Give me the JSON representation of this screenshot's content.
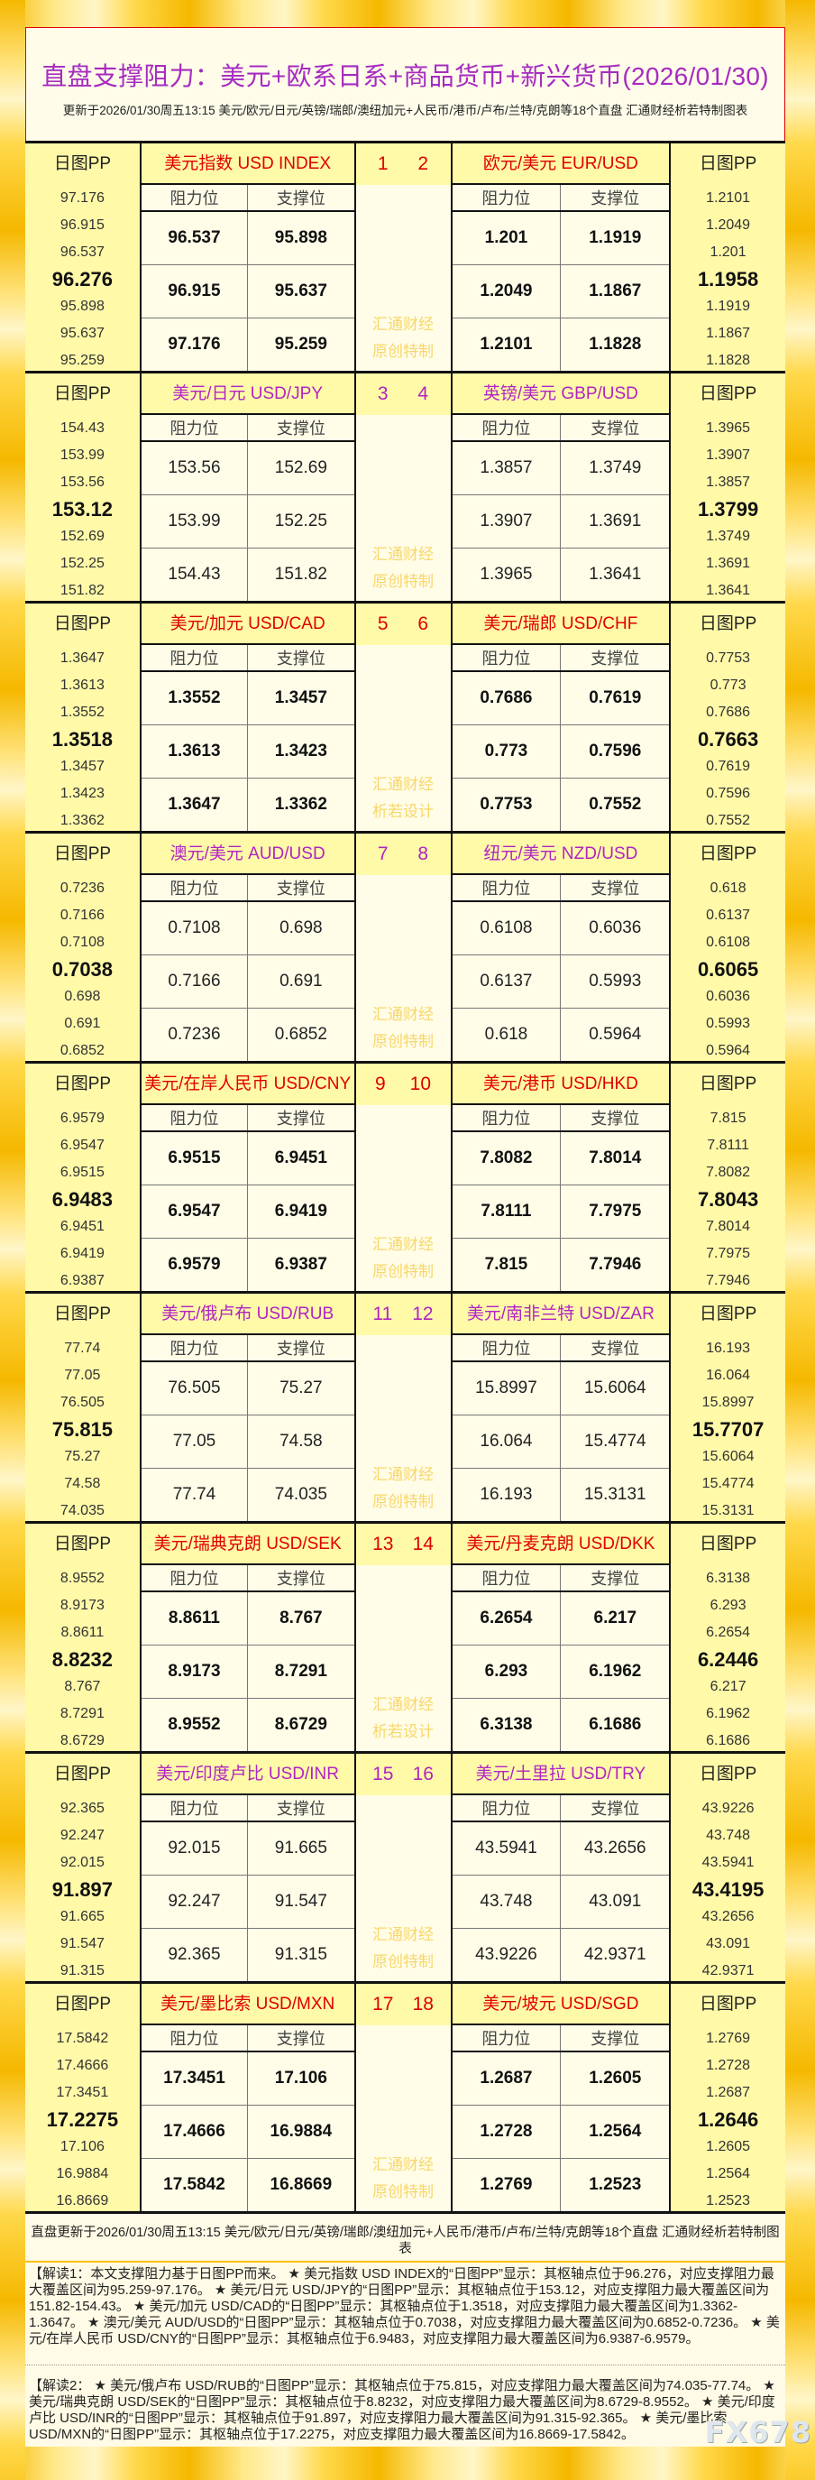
{
  "header": {
    "title": "直盘支撑阻力：美元+欧系日系+商品货币+新兴货币(2026/01/30)",
    "update": "更新于2026/01/30周五13:15 美元/欧元/日元/英镑/瑞郎/澳纽加元+人民币/港币/卢布/兰特/克朗等18个直盘 汇通财经析若特制图表"
  },
  "labels": {
    "pp": "日图PP",
    "resistance": "阻力位",
    "support": "支撑位"
  },
  "colors": {
    "red": "#e00000",
    "purple": "#b024c4",
    "watermark": "#f9d66a"
  },
  "panels": [
    {
      "nums": [
        "1",
        "2"
      ],
      "style": "red",
      "wm": [
        "汇通财经",
        "原创特制"
      ],
      "left": {
        "title": "美元指数 USD INDEX",
        "pp": [
          "97.176",
          "96.915",
          "96.537",
          "96.276",
          "95.898",
          "95.637",
          "95.259"
        ]
      },
      "right": {
        "title": "欧元/美元 EUR/USD",
        "pp": [
          "1.2101",
          "1.2049",
          "1.201",
          "1.1958",
          "1.1919",
          "1.1867",
          "1.1828"
        ]
      }
    },
    {
      "nums": [
        "3",
        "4"
      ],
      "style": "purple",
      "wm": [
        "汇通财经",
        "原创特制"
      ],
      "left": {
        "title": "美元/日元 USD/JPY",
        "pp": [
          "154.43",
          "153.99",
          "153.56",
          "153.12",
          "152.69",
          "152.25",
          "151.82"
        ]
      },
      "right": {
        "title": "英镑/美元 GBP/USD",
        "pp": [
          "1.3965",
          "1.3907",
          "1.3857",
          "1.3799",
          "1.3749",
          "1.3691",
          "1.3641"
        ]
      }
    },
    {
      "nums": [
        "5",
        "6"
      ],
      "style": "red",
      "wm": [
        "汇通财经",
        "析若设计"
      ],
      "left": {
        "title": "美元/加元 USD/CAD",
        "pp": [
          "1.3647",
          "1.3613",
          "1.3552",
          "1.3518",
          "1.3457",
          "1.3423",
          "1.3362"
        ]
      },
      "right": {
        "title": "美元/瑞郎 USD/CHF",
        "pp": [
          "0.7753",
          "0.773",
          "0.7686",
          "0.7663",
          "0.7619",
          "0.7596",
          "0.7552"
        ]
      }
    },
    {
      "nums": [
        "7",
        "8"
      ],
      "style": "purple",
      "wm": [
        "汇通财经",
        "原创特制"
      ],
      "left": {
        "title": "澳元/美元 AUD/USD",
        "pp": [
          "0.7236",
          "0.7166",
          "0.7108",
          "0.7038",
          "0.698",
          "0.691",
          "0.6852"
        ]
      },
      "right": {
        "title": "纽元/美元 NZD/USD",
        "pp": [
          "0.618",
          "0.6137",
          "0.6108",
          "0.6065",
          "0.6036",
          "0.5993",
          "0.5964"
        ]
      }
    },
    {
      "nums": [
        "9",
        "10"
      ],
      "style": "red",
      "wm": [
        "汇通财经",
        "原创特制"
      ],
      "left": {
        "title": "美元/在岸人民币 USD/CNY",
        "pp": [
          "6.9579",
          "6.9547",
          "6.9515",
          "6.9483",
          "6.9451",
          "6.9419",
          "6.9387"
        ]
      },
      "right": {
        "title": "美元/港币 USD/HKD",
        "pp": [
          "7.815",
          "7.8111",
          "7.8082",
          "7.8043",
          "7.8014",
          "7.7975",
          "7.7946"
        ]
      }
    },
    {
      "nums": [
        "11",
        "12"
      ],
      "style": "purple",
      "wm": [
        "汇通财经",
        "原创特制"
      ],
      "left": {
        "title": "美元/俄卢布 USD/RUB",
        "pp": [
          "77.74",
          "77.05",
          "76.505",
          "75.815",
          "75.27",
          "74.58",
          "74.035"
        ]
      },
      "right": {
        "title": "美元/南非兰特 USD/ZAR",
        "pp": [
          "16.193",
          "16.064",
          "15.8997",
          "15.7707",
          "15.6064",
          "15.4774",
          "15.3131"
        ]
      }
    },
    {
      "nums": [
        "13",
        "14"
      ],
      "style": "red",
      "wm": [
        "汇通财经",
        "析若设计"
      ],
      "left": {
        "title": "美元/瑞典克朗 USD/SEK",
        "pp": [
          "8.9552",
          "8.9173",
          "8.8611",
          "8.8232",
          "8.767",
          "8.7291",
          "8.6729"
        ]
      },
      "right": {
        "title": "美元/丹麦克朗 USD/DKK",
        "pp": [
          "6.3138",
          "6.293",
          "6.2654",
          "6.2446",
          "6.217",
          "6.1962",
          "6.1686"
        ]
      }
    },
    {
      "nums": [
        "15",
        "16"
      ],
      "style": "purple",
      "wm": [
        "汇通财经",
        "原创特制"
      ],
      "left": {
        "title": "美元/印度卢比 USD/INR",
        "pp": [
          "92.365",
          "92.247",
          "92.015",
          "91.897",
          "91.665",
          "91.547",
          "91.315"
        ]
      },
      "right": {
        "title": "美元/土里拉 USD/TRY",
        "pp": [
          "43.9226",
          "43.748",
          "43.5941",
          "43.4195",
          "43.2656",
          "43.091",
          "42.9371"
        ]
      }
    },
    {
      "nums": [
        "17",
        "18"
      ],
      "style": "red",
      "wm": [
        "汇通财经",
        "原创特制"
      ],
      "left": {
        "title": "美元/墨比索 USD/MXN",
        "pp": [
          "17.5842",
          "17.4666",
          "17.3451",
          "17.2275",
          "17.106",
          "16.9884",
          "16.8669"
        ]
      },
      "right": {
        "title": "美元/坡元 USD/SGD",
        "pp": [
          "1.2769",
          "1.2728",
          "1.2687",
          "1.2646",
          "1.2605",
          "1.2564",
          "1.2523"
        ]
      }
    }
  ],
  "footer": {
    "update": "直盘更新于2026/01/30周五13:15 美元/欧元/日元/英镑/瑞郎/澳纽加元+人民币/港币/卢布/兰特/克朗等18个直盘 汇通财经析若特制图表",
    "note1": "【解读1：本文支撑阻力基于日图PP而来。 ★ 美元指数 USD INDEX的“日图PP”显示：其枢轴点位于96.276，对应支撑阻力最大覆盖区间为95.259-97.176。 ★ 美元/日元 USD/JPY的“日图PP”显示：其枢轴点位于153.12，对应支撑阻力最大覆盖区间为151.82-154.43。 ★ 美元/加元 USD/CAD的“日图PP”显示：其枢轴点位于1.3518，对应支撑阻力最大覆盖区间为1.3362-1.3647。 ★ 澳元/美元 AUD/USD的“日图PP”显示：其枢轴点位于0.7038，对应支撑阻力最大覆盖区间为0.6852-0.7236。 ★ 美元/在岸人民币 USD/CNY的“日图PP”显示：其枢轴点位于6.9483，对应支撑阻力最大覆盖区间为6.9387-6.9579。",
    "note2": "【解读2： ★ 美元/俄卢布 USD/RUB的“日图PP”显示：其枢轴点位于75.815，对应支撑阻力最大覆盖区间为74.035-77.74。 ★ 美元/瑞典克朗 USD/SEK的“日图PP”显示：其枢轴点位于8.8232，对应支撑阻力最大覆盖区间为8.6729-8.9552。 ★ 美元/印度卢比 USD/INR的“日图PP”显示：其枢轴点位于91.897，对应支撑阻力最大覆盖区间为91.315-92.365。 ★ 美元/墨比索 USD/MXN的“日图PP”显示：其枢轴点位于17.2275，对应支撑阻力最大覆盖区间为16.8669-17.5842。",
    "logo": "FX678"
  }
}
